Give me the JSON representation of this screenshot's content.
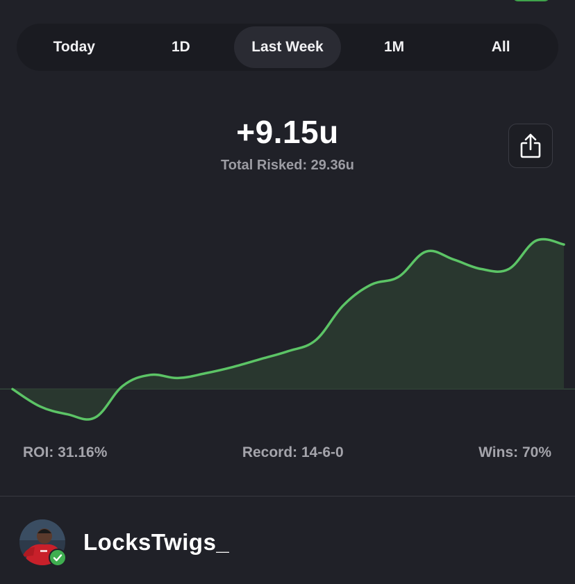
{
  "tabs": [
    {
      "label": "Today",
      "active": false
    },
    {
      "label": "1D",
      "active": false
    },
    {
      "label": "Last Week",
      "active": true
    },
    {
      "label": "1M",
      "active": false
    },
    {
      "label": "All",
      "active": false
    }
  ],
  "summary": {
    "profit": "+9.15u",
    "total_risked": "Total Risked: 29.36u"
  },
  "share_icon": "share-icon",
  "stats": {
    "roi": "ROI: 31.16%",
    "record": "Record: 14-6-0",
    "wins": "Wins: 70%"
  },
  "profile": {
    "username": "LocksTwigs_",
    "verified_icon": "check-badge-icon"
  },
  "colors": {
    "background": "#202128",
    "accent_green": "#5cc466",
    "muted_text": "#9c9ca3"
  },
  "chart_data": {
    "type": "area",
    "title": "",
    "xlabel": "",
    "ylabel": "",
    "unit": "u",
    "baseline": 0,
    "grid": false,
    "legend": "none",
    "x": [
      0,
      1,
      2,
      3,
      4,
      5,
      6,
      7,
      8,
      9,
      10,
      11,
      12,
      13,
      14,
      15,
      16,
      17,
      18,
      19,
      20
    ],
    "values": [
      0,
      -1.1,
      -1.6,
      -1.8,
      0.2,
      0.9,
      0.7,
      1.0,
      1.4,
      1.9,
      2.4,
      3.1,
      5.3,
      6.6,
      7.1,
      8.7,
      8.2,
      7.6,
      7.6,
      9.4,
      9.15
    ],
    "ylim": [
      -2.8,
      11.0
    ]
  }
}
